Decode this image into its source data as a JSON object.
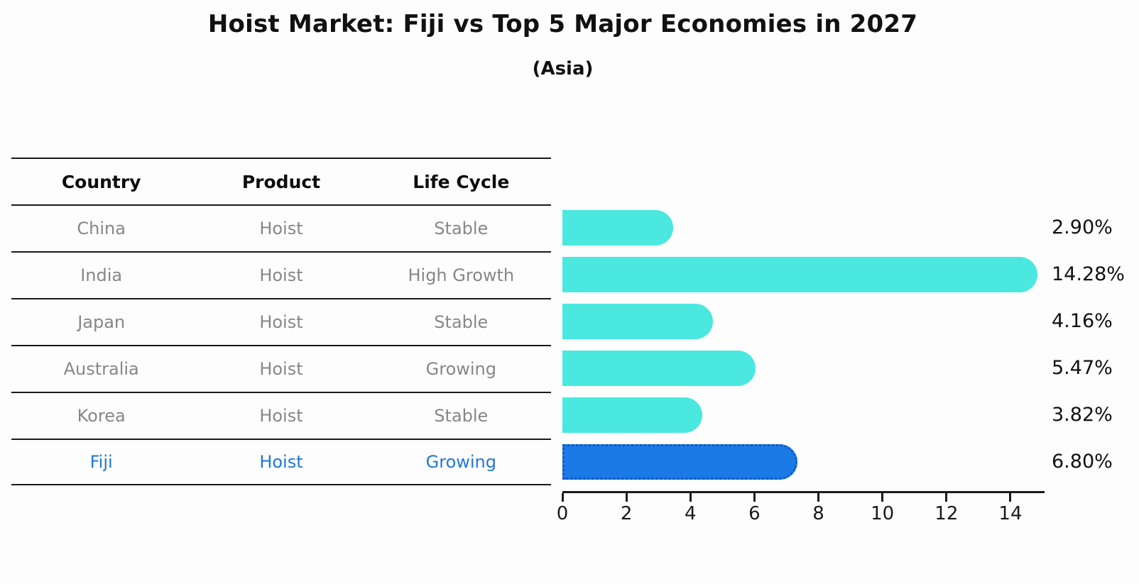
{
  "title": "Hoist Market: Fiji vs Top 5 Major Economies in 2027",
  "subtitle": "(Asia)",
  "table": {
    "headers": [
      "Country",
      "Product",
      "Life Cycle"
    ],
    "rows": [
      {
        "country": "China",
        "product": "Hoist",
        "life_cycle": "Stable",
        "highlight": false
      },
      {
        "country": "India",
        "product": "Hoist",
        "life_cycle": "High Growth",
        "highlight": false
      },
      {
        "country": "Japan",
        "product": "Hoist",
        "life_cycle": "Stable",
        "highlight": false
      },
      {
        "country": "Australia",
        "product": "Hoist",
        "life_cycle": "Growing",
        "highlight": false
      },
      {
        "country": "Korea",
        "product": "Hoist",
        "life_cycle": "Stable",
        "highlight": false
      },
      {
        "country": "Fiji",
        "product": "Hoist",
        "life_cycle": "Growing",
        "highlight": true
      }
    ]
  },
  "chart_data": {
    "type": "bar",
    "orientation": "horizontal",
    "title": "Hoist Market: Fiji vs Top 5 Major Economies in 2027",
    "subtitle": "(Asia)",
    "categories": [
      "China",
      "India",
      "Japan",
      "Australia",
      "Korea",
      "Fiji"
    ],
    "values": [
      2.9,
      14.28,
      4.16,
      5.47,
      3.82,
      6.8
    ],
    "value_labels": [
      "2.90%",
      "14.28%",
      "4.16%",
      "5.47%",
      "3.82%",
      "6.80%"
    ],
    "xlabel": "",
    "ylabel": "",
    "xlim": [
      0,
      15
    ],
    "xticks": [
      0,
      2,
      4,
      6,
      8,
      10,
      12,
      14
    ],
    "grid": false,
    "legend": false,
    "highlight_index": 5
  },
  "colors": {
    "bar": "#4ae8df",
    "highlight_bar": "#1b7ae6",
    "highlight_border": "#1457c8",
    "highlight_text": "#2277d8",
    "text": "#111111",
    "muted_text": "#878787",
    "line": "#1a1a1a",
    "background": "#fdfdfd"
  }
}
